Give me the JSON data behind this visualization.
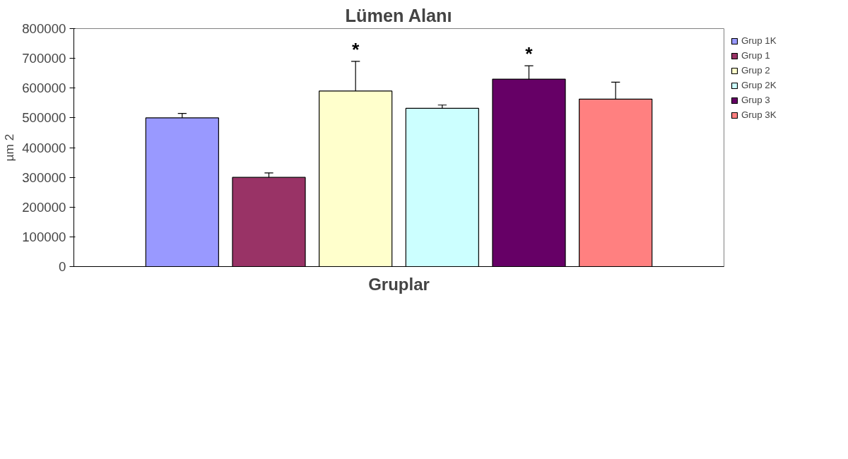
{
  "chart_data": {
    "type": "bar",
    "title": "Lümen Alanı",
    "xlabel": "Gruplar",
    "ylabel": "µm 2",
    "categories": [
      null
    ],
    "series": [
      {
        "name": "Grup 1K",
        "color": "#9999ff",
        "values": [
          500000
        ],
        "errors": [
          [
            500000,
            515000
          ]
        ]
      },
      {
        "name": "Grup 1",
        "color": "#993366",
        "values": [
          300000
        ],
        "errors": [
          [
            300000,
            315000
          ]
        ]
      },
      {
        "name": "Grup 2",
        "color": "#ffffcc",
        "values": [
          590000
        ],
        "errors": [
          [
            590000,
            690000
          ]
        ],
        "value_labels": [
          "*"
        ]
      },
      {
        "name": "Grup 2K",
        "color": "#ccffff",
        "values": [
          532000
        ],
        "errors": [
          [
            532000,
            543000
          ]
        ]
      },
      {
        "name": "Grup 3",
        "color": "#660066",
        "values": [
          630000
        ],
        "errors": [
          [
            630000,
            675000
          ]
        ],
        "value_labels": [
          "*"
        ]
      },
      {
        "name": "Grup 3K",
        "color": "#ff8080",
        "values": [
          563000
        ],
        "errors": [
          [
            563000,
            620000
          ]
        ]
      }
    ],
    "ylim": [
      0,
      800000
    ],
    "yticks": [
      0,
      100000,
      200000,
      300000,
      400000,
      500000,
      600000,
      700000,
      800000
    ],
    "grid": false,
    "legend": "top right",
    "tick_labels": "y"
  }
}
